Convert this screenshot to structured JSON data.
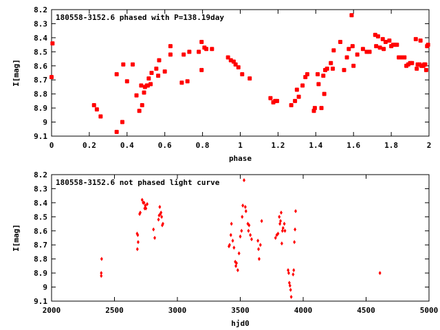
{
  "chart_data": [
    {
      "type": "scatter",
      "title": "180558-3152.6 phased with P=138.19day",
      "xlabel": "phase",
      "ylabel": "I[mag]",
      "xlim": [
        0,
        2
      ],
      "ylim": [
        9.1,
        8.2
      ],
      "y_inverted": true,
      "xticks": [
        "0",
        "0.2",
        "0.4",
        "0.6",
        "0.8",
        "1",
        "1.2",
        "1.4",
        "1.6",
        "1.8",
        "2"
      ],
      "yticks": [
        "8.2",
        "8.3",
        "8.4",
        "8.5",
        "8.6",
        "8.7",
        "8.8",
        "8.9",
        "9",
        "9.1"
      ],
      "marker_color": "#ff0000",
      "marker": "filled-square",
      "grid": false,
      "series": [
        {
          "points": [
            [
              0.0,
              8.68
            ],
            [
              0.005,
              8.44
            ],
            [
              0.225,
              8.88
            ],
            [
              0.24,
              8.91
            ],
            [
              0.26,
              8.96
            ],
            [
              0.345,
              9.07
            ],
            [
              0.345,
              8.66
            ],
            [
              0.375,
              9.0
            ],
            [
              0.38,
              8.59
            ],
            [
              0.4,
              8.71
            ],
            [
              0.43,
              8.59
            ],
            [
              0.45,
              8.81
            ],
            [
              0.465,
              8.92
            ],
            [
              0.475,
              8.74
            ],
            [
              0.48,
              8.88
            ],
            [
              0.49,
              8.79
            ],
            [
              0.495,
              8.75
            ],
            [
              0.505,
              8.74
            ],
            [
              0.51,
              8.74
            ],
            [
              0.515,
              8.69
            ],
            [
              0.525,
              8.73
            ],
            [
              0.53,
              8.65
            ],
            [
              0.555,
              8.62
            ],
            [
              0.565,
              8.67
            ],
            [
              0.57,
              8.56
            ],
            [
              0.6,
              8.64
            ],
            [
              0.63,
              8.52
            ],
            [
              0.63,
              8.46
            ],
            [
              0.69,
              8.72
            ],
            [
              0.7,
              8.52
            ],
            [
              0.72,
              8.71
            ],
            [
              0.73,
              8.5
            ],
            [
              0.78,
              8.5
            ],
            [
              0.795,
              8.63
            ],
            [
              0.795,
              8.43
            ],
            [
              0.81,
              8.47
            ],
            [
              0.82,
              8.48
            ],
            [
              0.85,
              8.48
            ],
            [
              0.935,
              8.54
            ],
            [
              0.95,
              8.56
            ],
            [
              0.965,
              8.57
            ],
            [
              0.975,
              8.59
            ],
            [
              0.99,
              8.61
            ],
            [
              1.01,
              8.66
            ],
            [
              1.05,
              8.69
            ],
            [
              1.16,
              8.83
            ],
            [
              1.175,
              8.86
            ],
            [
              1.185,
              8.85
            ],
            [
              1.195,
              8.85
            ],
            [
              1.27,
              8.88
            ],
            [
              1.29,
              8.85
            ],
            [
              1.3,
              8.77
            ],
            [
              1.31,
              8.82
            ],
            [
              1.33,
              8.74
            ],
            [
              1.345,
              8.68
            ],
            [
              1.355,
              8.66
            ],
            [
              1.39,
              8.92
            ],
            [
              1.395,
              8.9
            ],
            [
              1.41,
              8.66
            ],
            [
              1.415,
              8.73
            ],
            [
              1.43,
              8.9
            ],
            [
              1.44,
              8.67
            ],
            [
              1.445,
              8.8
            ],
            [
              1.45,
              8.63
            ],
            [
              1.46,
              8.62
            ],
            [
              1.48,
              8.58
            ],
            [
              1.49,
              8.62
            ],
            [
              1.495,
              8.49
            ],
            [
              1.53,
              8.43
            ],
            [
              1.55,
              8.63
            ],
            [
              1.565,
              8.54
            ],
            [
              1.575,
              8.48
            ],
            [
              1.59,
              8.24
            ],
            [
              1.595,
              8.46
            ],
            [
              1.6,
              8.6
            ],
            [
              1.62,
              8.52
            ],
            [
              1.65,
              8.48
            ],
            [
              1.67,
              8.5
            ],
            [
              1.685,
              8.5
            ],
            [
              1.715,
              8.38
            ],
            [
              1.72,
              8.46
            ],
            [
              1.73,
              8.39
            ],
            [
              1.74,
              8.47
            ],
            [
              1.755,
              8.41
            ],
            [
              1.76,
              8.48
            ],
            [
              1.77,
              8.43
            ],
            [
              1.79,
              8.42
            ],
            [
              1.8,
              8.46
            ],
            [
              1.81,
              8.45
            ],
            [
              1.82,
              8.45
            ],
            [
              1.83,
              8.45
            ],
            [
              1.84,
              8.54
            ],
            [
              1.85,
              8.54
            ],
            [
              1.86,
              8.54
            ],
            [
              1.87,
              8.54
            ],
            [
              1.88,
              8.6
            ],
            [
              1.89,
              8.59
            ],
            [
              1.9,
              8.58
            ],
            [
              1.91,
              8.58
            ],
            [
              1.93,
              8.41
            ],
            [
              1.935,
              8.62
            ],
            [
              1.94,
              8.59
            ],
            [
              1.95,
              8.59
            ],
            [
              1.955,
              8.42
            ],
            [
              1.96,
              8.6
            ],
            [
              1.965,
              8.6
            ],
            [
              1.97,
              8.6
            ],
            [
              1.975,
              8.59
            ],
            [
              1.98,
              8.59
            ],
            [
              1.985,
              8.63
            ],
            [
              1.99,
              8.46
            ],
            [
              1.995,
              8.45
            ]
          ]
        }
      ]
    },
    {
      "type": "scatter",
      "title": "180558-3152.6 not phased light curve",
      "xlabel": "hjd0",
      "ylabel": "I[mag]",
      "xlim": [
        2000,
        5000
      ],
      "ylim": [
        9.1,
        8.2
      ],
      "y_inverted": true,
      "xticks": [
        "2000",
        "2500",
        "3000",
        "3500",
        "4000",
        "4500",
        "5000"
      ],
      "yticks": [
        "8.2",
        "8.3",
        "8.4",
        "8.5",
        "8.6",
        "8.7",
        "8.8",
        "8.9",
        "9",
        "9.1"
      ],
      "marker_color": "#ff0000",
      "marker": "filled-diamond",
      "grid": false,
      "series": [
        {
          "points": [
            [
              2395,
              8.9
            ],
            [
              2395,
              8.92
            ],
            [
              2398,
              8.8
            ],
            [
              2680,
              8.62
            ],
            [
              2682,
              8.73
            ],
            [
              2685,
              8.63
            ],
            [
              2688,
              8.68
            ],
            [
              2700,
              8.48
            ],
            [
              2705,
              8.47
            ],
            [
              2720,
              8.38
            ],
            [
              2728,
              8.4
            ],
            [
              2735,
              8.4
            ],
            [
              2740,
              8.44
            ],
            [
              2745,
              8.42
            ],
            [
              2750,
              8.44
            ],
            [
              2760,
              8.41
            ],
            [
              2810,
              8.59
            ],
            [
              2820,
              8.65
            ],
            [
              2850,
              8.52
            ],
            [
              2855,
              8.49
            ],
            [
              2860,
              8.43
            ],
            [
              2865,
              8.48
            ],
            [
              2870,
              8.47
            ],
            [
              2875,
              8.5
            ],
            [
              2880,
              8.56
            ],
            [
              2885,
              8.55
            ],
            [
              3410,
              8.71
            ],
            [
              3415,
              8.7
            ],
            [
              3425,
              8.63
            ],
            [
              3430,
              8.55
            ],
            [
              3440,
              8.67
            ],
            [
              3450,
              8.72
            ],
            [
              3460,
              8.82
            ],
            [
              3465,
              8.85
            ],
            [
              3470,
              8.83
            ],
            [
              3480,
              8.88
            ],
            [
              3490,
              8.76
            ],
            [
              3500,
              8.64
            ],
            [
              3510,
              8.6
            ],
            [
              3515,
              8.5
            ],
            [
              3520,
              8.42
            ],
            [
              3530,
              8.24
            ],
            [
              3540,
              8.43
            ],
            [
              3545,
              8.46
            ],
            [
              3560,
              8.55
            ],
            [
              3565,
              8.6
            ],
            [
              3570,
              8.56
            ],
            [
              3580,
              8.63
            ],
            [
              3590,
              8.66
            ],
            [
              3640,
              8.67
            ],
            [
              3645,
              8.73
            ],
            [
              3650,
              8.8
            ],
            [
              3660,
              8.7
            ],
            [
              3670,
              8.53
            ],
            [
              3780,
              8.65
            ],
            [
              3790,
              8.63
            ],
            [
              3800,
              8.62
            ],
            [
              3810,
              8.5
            ],
            [
              3815,
              8.55
            ],
            [
              3820,
              8.53
            ],
            [
              3825,
              8.47
            ],
            [
              3830,
              8.69
            ],
            [
              3835,
              8.6
            ],
            [
              3840,
              8.58
            ],
            [
              3850,
              8.55
            ],
            [
              3855,
              8.6
            ],
            [
              3880,
              8.88
            ],
            [
              3885,
              8.9
            ],
            [
              3890,
              8.97
            ],
            [
              3895,
              8.99
            ],
            [
              3900,
              9.02
            ],
            [
              3905,
              9.07
            ],
            [
              3920,
              8.91
            ],
            [
              3925,
              8.88
            ],
            [
              3930,
              8.68
            ],
            [
              3935,
              8.59
            ],
            [
              3940,
              8.46
            ],
            [
              4610,
              8.9
            ]
          ]
        }
      ]
    }
  ]
}
